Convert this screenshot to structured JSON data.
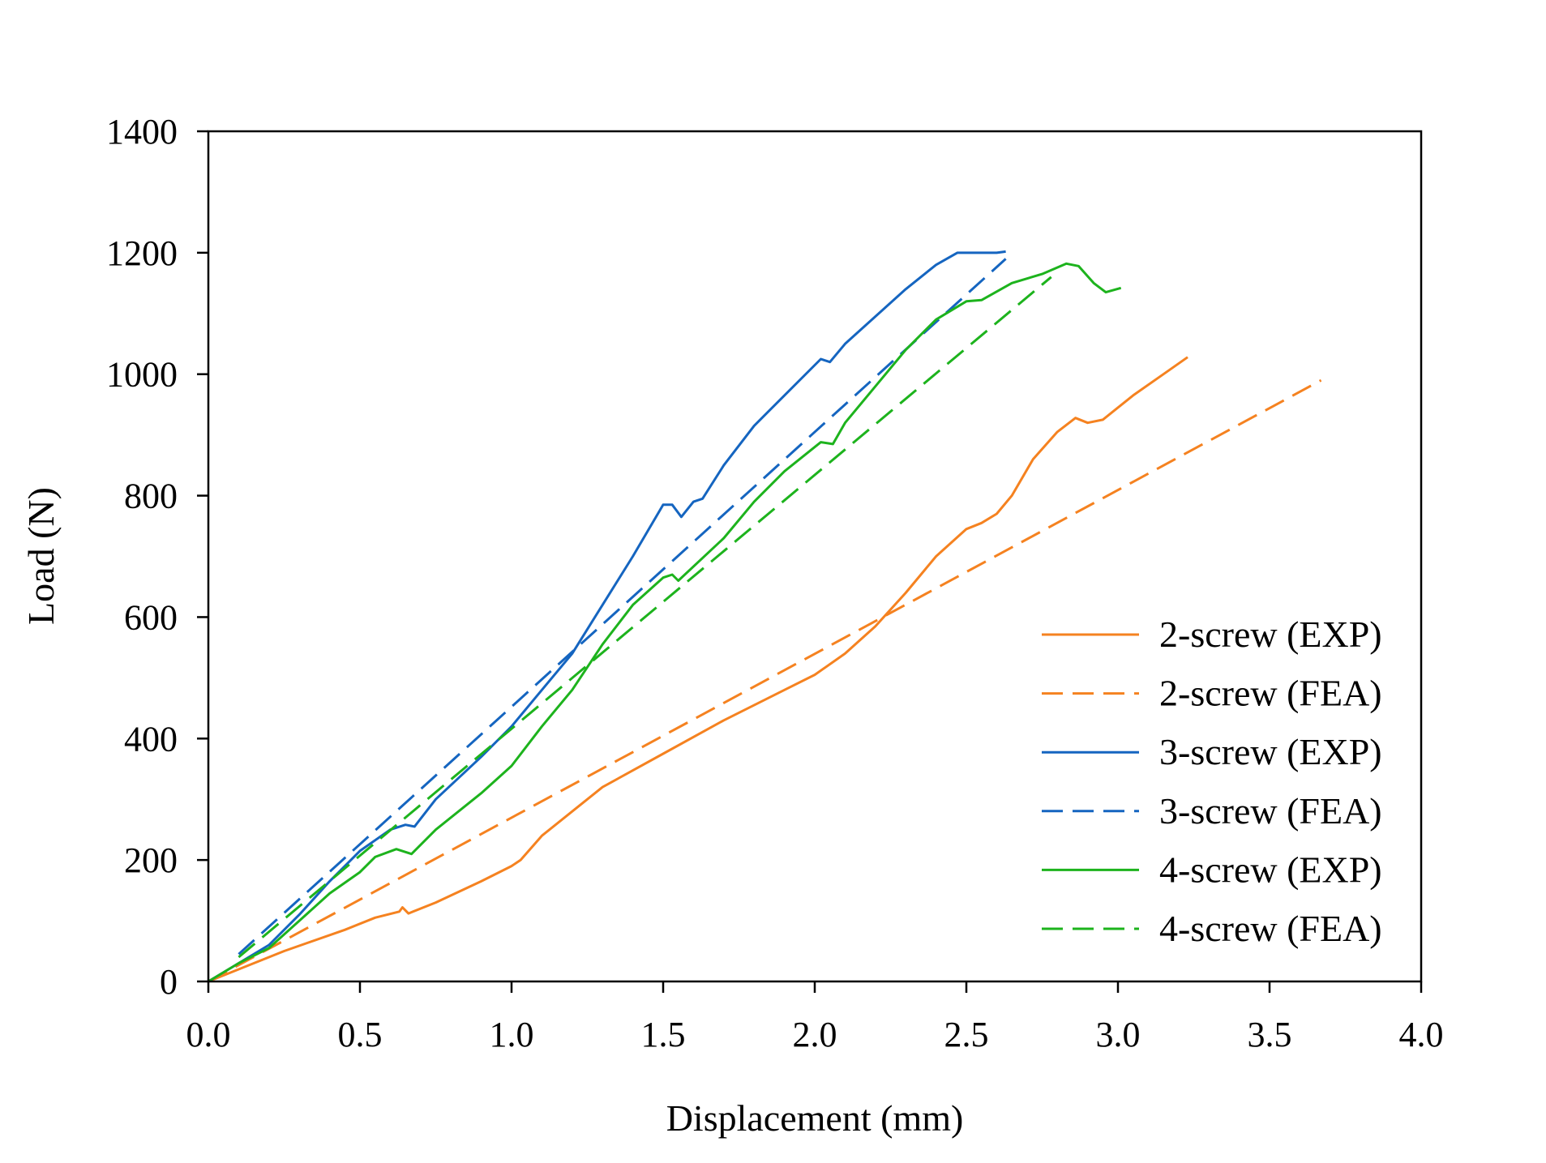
{
  "chart_data": {
    "type": "line",
    "title": "",
    "xlabel": "Displacement (mm)",
    "ylabel": "Load (N)",
    "xlim": [
      0,
      4
    ],
    "ylim": [
      0,
      1400
    ],
    "xticks": [
      "0.0",
      "0.5",
      "1.0",
      "1.5",
      "2.0",
      "2.5",
      "3.0",
      "3.5",
      "4.0"
    ],
    "yticks": [
      "0",
      "200",
      "400",
      "600",
      "800",
      "1000",
      "1200",
      "1400"
    ],
    "grid": false,
    "legend_position": "bottom-right",
    "series": [
      {
        "name": "2-screw (EXP)",
        "color": "#F58220",
        "dash": false,
        "x": [
          0,
          0.1,
          0.25,
          0.45,
          0.55,
          0.63,
          0.64,
          0.66,
          0.75,
          0.9,
          1.0,
          1.03,
          1.1,
          1.2,
          1.3,
          1.5,
          1.7,
          1.9,
          2.0,
          2.1,
          2.2,
          2.3,
          2.4,
          2.5,
          2.55,
          2.6,
          2.65,
          2.72,
          2.8,
          2.86,
          2.9,
          2.95,
          3.05,
          3.15,
          3.23
        ],
        "y": [
          0,
          20,
          50,
          85,
          105,
          115,
          122,
          112,
          130,
          165,
          190,
          200,
          240,
          280,
          320,
          375,
          430,
          480,
          505,
          540,
          585,
          640,
          700,
          745,
          755,
          770,
          800,
          860,
          905,
          928,
          920,
          925,
          965,
          1000,
          1028
        ]
      },
      {
        "name": "2-screw (FEA)",
        "color": "#F58220",
        "dash": true,
        "x": [
          0,
          3.67
        ],
        "y": [
          0,
          990
        ]
      },
      {
        "name": "3-screw (EXP)",
        "color": "#1565C0",
        "dash": false,
        "x": [
          0,
          0.1,
          0.2,
          0.3,
          0.4,
          0.5,
          0.6,
          0.65,
          0.68,
          0.75,
          0.9,
          1.0,
          1.1,
          1.2,
          1.3,
          1.4,
          1.5,
          1.53,
          1.56,
          1.6,
          1.63,
          1.7,
          1.8,
          1.9,
          2.0,
          2.02,
          2.05,
          2.1,
          2.2,
          2.3,
          2.4,
          2.47,
          2.6,
          2.63
        ],
        "y": [
          0,
          30,
          60,
          110,
          165,
          215,
          250,
          258,
          255,
          300,
          370,
          420,
          480,
          540,
          620,
          700,
          785,
          785,
          765,
          790,
          795,
          850,
          915,
          965,
          1015,
          1025,
          1020,
          1050,
          1095,
          1140,
          1180,
          1200,
          1200,
          1202
        ]
      },
      {
        "name": "3-screw (FEA)",
        "color": "#1565C0",
        "dash": true,
        "x": [
          0.1,
          2.63
        ],
        "y": [
          45,
          1190
        ]
      },
      {
        "name": "4-screw (EXP)",
        "color": "#1DB31D",
        "dash": false,
        "x": [
          0,
          0.1,
          0.2,
          0.3,
          0.4,
          0.5,
          0.55,
          0.62,
          0.67,
          0.75,
          0.9,
          1.0,
          1.1,
          1.2,
          1.3,
          1.4,
          1.5,
          1.53,
          1.55,
          1.7,
          1.8,
          1.9,
          2.0,
          2.02,
          2.06,
          2.1,
          2.2,
          2.3,
          2.4,
          2.5,
          2.55,
          2.65,
          2.75,
          2.83,
          2.87,
          2.92,
          2.96,
          3.01
        ],
        "y": [
          0,
          30,
          55,
          100,
          145,
          180,
          205,
          218,
          210,
          250,
          310,
          355,
          420,
          480,
          555,
          620,
          665,
          670,
          660,
          730,
          790,
          840,
          880,
          888,
          885,
          920,
          980,
          1040,
          1090,
          1120,
          1122,
          1150,
          1165,
          1182,
          1178,
          1150,
          1135,
          1142
        ]
      },
      {
        "name": "4-screw (FEA)",
        "color": "#1DB31D",
        "dash": true,
        "x": [
          0.1,
          2.78
        ],
        "y": [
          40,
          1160
        ]
      }
    ]
  }
}
